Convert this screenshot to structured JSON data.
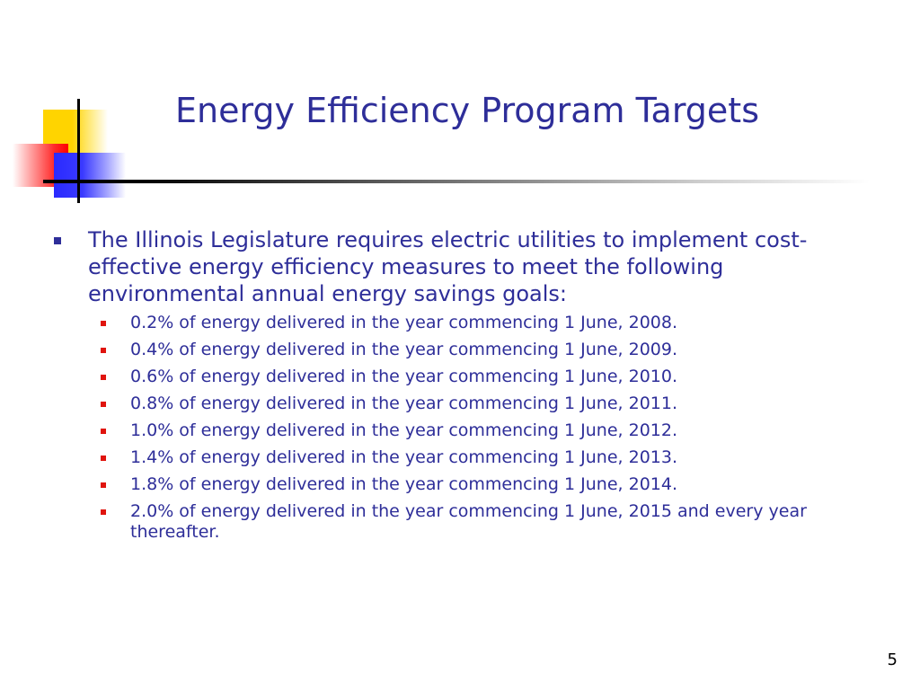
{
  "slide": {
    "title": "Energy Efficiency Program Targets",
    "bullet": "The Illinois Legislature requires electric utilities to implement cost-effective energy efficiency measures to meet the following environmental annual energy savings goals:",
    "sub_bullets": [
      "0.2% of energy delivered in the year commencing 1 June, 2008.",
      "0.4% of energy delivered in the year commencing 1 June, 2009.",
      "0.6% of energy delivered in the year commencing 1 June, 2010.",
      "0.8% of energy delivered in the year commencing 1 June, 2011.",
      "1.0% of energy delivered in the year commencing 1 June, 2012.",
      "1.4% of energy delivered in the year commencing 1 June, 2013.",
      "1.8% of energy delivered in the year commencing 1 June, 2014.",
      "2.0% of energy delivered in the year commencing 1 June, 2015 and every year thereafter."
    ],
    "page_number": "5"
  },
  "colors": {
    "title": "#2e2e99",
    "body_text": "#2e2e99",
    "sub_bullet": "#e0140e",
    "accent_yellow": "#ffd400",
    "accent_red": "#ff0000",
    "accent_blue": "#2a2aff"
  }
}
